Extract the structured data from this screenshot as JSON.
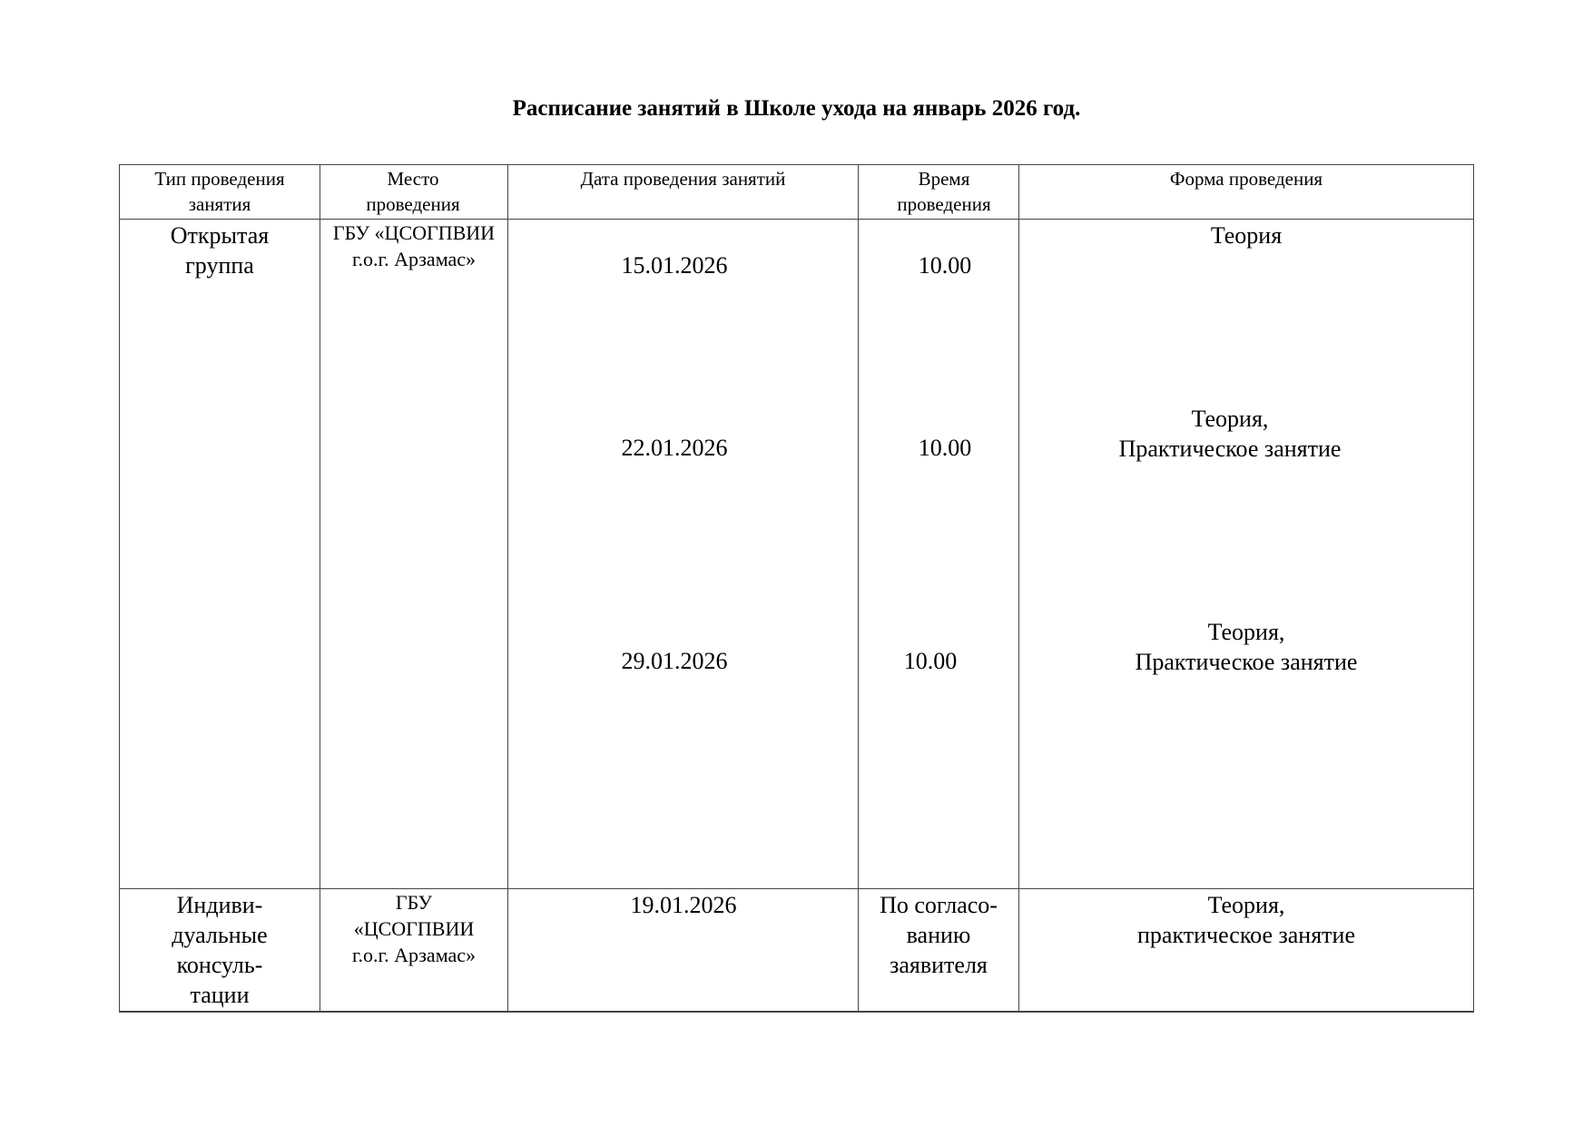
{
  "title": "Расписание занятий в Школе ухода на январь 2026 год.",
  "table": {
    "headers": [
      "Тип проведения занятия",
      "Место проведения",
      "Дата проведения занятий",
      "Время проведения",
      "Форма проведения"
    ],
    "rows": [
      {
        "type": "Открытая группа",
        "place": "ГБУ «ЦСОГПВИИ г.о.г. Арзамас»",
        "sessions": [
          {
            "date": "15.01.2026",
            "time": "10.00",
            "form": "Теория"
          },
          {
            "date": "22.01.2026",
            "time": "10.00",
            "form": "Теория,\nПрактическое занятие"
          },
          {
            "date": "29.01.2026",
            "time": "10.00",
            "form": "Теория,\nПрактическое занятие"
          }
        ]
      },
      {
        "type": "Индиви-\nдуальные\nконсуль-\nтации",
        "place": "ГБУ\n«ЦСОГПВИИ\nг.о.г. Арзамас»",
        "date": "19.01.2026",
        "time": "По согласо-\nванию\nзаявителя",
        "form": "Теория,\nпрактическое занятие"
      }
    ]
  }
}
